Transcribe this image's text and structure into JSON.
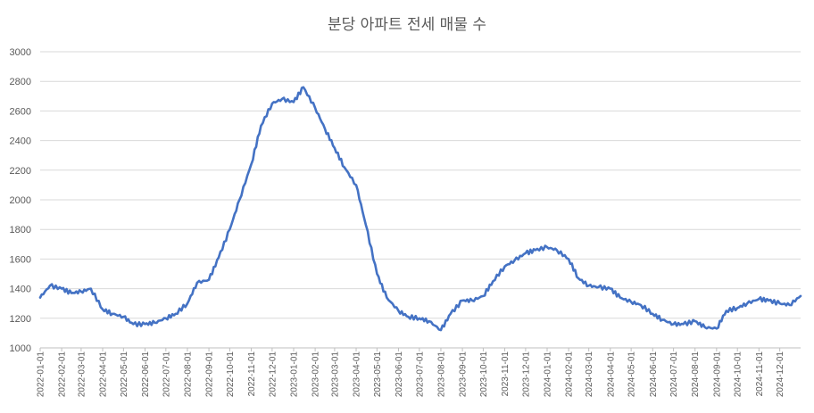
{
  "chart_data": {
    "type": "line",
    "title": "분당 아파트 전세 매물 수",
    "xlabel": "",
    "ylabel": "",
    "ylim": [
      1000,
      3000
    ],
    "yticks": [
      1000,
      1200,
      1400,
      1600,
      1800,
      2000,
      2200,
      2400,
      2600,
      2800,
      3000
    ],
    "xlim": [
      "2022-01-01",
      "2024-12-31"
    ],
    "xticks": [
      "2022-01-01",
      "2022-02-01",
      "2022-03-01",
      "2022-04-01",
      "2022-05-01",
      "2022-06-01",
      "2022-07-01",
      "2022-08-01",
      "2022-09-01",
      "2022-10-01",
      "2022-11-01",
      "2022-12-01",
      "2023-01-01",
      "2023-02-01",
      "2023-03-01",
      "2023-04-01",
      "2023-05-01",
      "2023-06-01",
      "2023-07-01",
      "2023-08-01",
      "2023-09-01",
      "2023-10-01",
      "2023-11-01",
      "2023-12-01",
      "2024-01-01",
      "2024-02-01",
      "2024-03-01",
      "2024-04-01",
      "2024-05-01",
      "2024-06-01",
      "2024-07-01",
      "2024-08-01",
      "2024-09-01",
      "2024-10-01",
      "2024-11-01",
      "2024-12-01"
    ],
    "grid": true,
    "legend": "none",
    "line_color": "#4472c4",
    "series": [
      {
        "x": [
          "2022-01-01",
          "2022-01-15",
          "2022-02-01",
          "2022-02-15",
          "2022-03-01",
          "2022-03-15",
          "2022-04-01",
          "2022-04-15",
          "2022-05-01",
          "2022-05-15",
          "2022-06-01",
          "2022-06-15",
          "2022-07-01",
          "2022-07-15",
          "2022-08-01",
          "2022-08-15",
          "2022-09-01",
          "2022-09-15",
          "2022-10-01",
          "2022-10-15",
          "2022-11-01",
          "2022-11-15",
          "2022-12-01",
          "2022-12-15",
          "2023-01-01",
          "2023-01-15",
          "2023-02-01",
          "2023-02-15",
          "2023-03-01",
          "2023-03-15",
          "2023-04-01",
          "2023-04-15",
          "2023-05-01",
          "2023-05-15",
          "2023-06-01",
          "2023-06-15",
          "2023-07-01",
          "2023-07-15",
          "2023-08-01",
          "2023-08-15",
          "2023-09-01",
          "2023-09-15",
          "2023-10-01",
          "2023-10-15",
          "2023-11-01",
          "2023-11-15",
          "2023-12-01",
          "2023-12-15",
          "2024-01-01",
          "2024-01-15",
          "2024-02-01",
          "2024-02-15",
          "2024-03-01",
          "2024-03-15",
          "2024-04-01",
          "2024-04-15",
          "2024-05-01",
          "2024-05-15",
          "2024-06-01",
          "2024-06-15",
          "2024-07-01",
          "2024-07-15",
          "2024-08-01",
          "2024-08-15",
          "2024-09-01",
          "2024-09-15",
          "2024-10-01",
          "2024-10-15",
          "2024-11-01",
          "2024-11-15",
          "2024-12-01",
          "2024-12-15",
          "2024-12-31"
        ],
        "values": [
          1340,
          1420,
          1400,
          1370,
          1380,
          1400,
          1260,
          1230,
          1210,
          1160,
          1160,
          1170,
          1200,
          1230,
          1300,
          1440,
          1460,
          1610,
          1800,
          2000,
          2240,
          2500,
          2650,
          2680,
          2660,
          2760,
          2620,
          2480,
          2350,
          2220,
          2100,
          1830,
          1500,
          1340,
          1250,
          1210,
          1200,
          1180,
          1120,
          1230,
          1320,
          1320,
          1350,
          1450,
          1550,
          1590,
          1640,
          1660,
          1680,
          1660,
          1600,
          1470,
          1420,
          1410,
          1400,
          1340,
          1310,
          1290,
          1230,
          1190,
          1160,
          1160,
          1180,
          1140,
          1130,
          1250,
          1270,
          1300,
          1330,
          1320,
          1300,
          1290,
          1350
        ]
      }
    ]
  }
}
